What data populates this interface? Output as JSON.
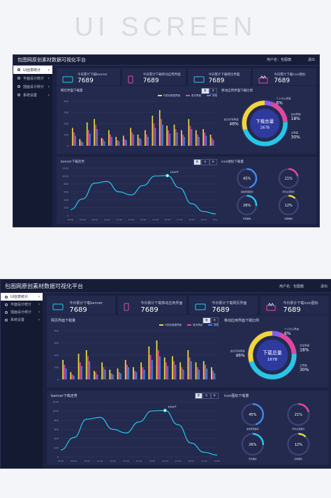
{
  "hero_title": "UI SCREEN",
  "app": {
    "title": "包图网原创素材数据可视化平台",
    "user": "用户名：包图酱",
    "logout": "退出"
  },
  "sidebar": {
    "items": [
      {
        "label": "UI创意统计"
      },
      {
        "label": "平面设计统计"
      },
      {
        "label": "插画设计统计"
      },
      {
        "label": "系统设置"
      }
    ]
  },
  "stats": [
    {
      "label": "今日累计下载banner",
      "value": "7689",
      "icon": "monitor-icon"
    },
    {
      "label": "今日累计下载移动应用界面",
      "value": "7689",
      "icon": "phone-icon"
    },
    {
      "label": "今日累计下载网页界面",
      "value": "7689",
      "icon": "monitor-icon"
    },
    {
      "label": "今日累计下载icon图标",
      "value": "7689",
      "icon": "gift-icon"
    }
  ],
  "colors": {
    "bg": "#1b2140",
    "card": "#232a4e",
    "yellow": "#f2d53c",
    "pink": "#e0489f",
    "blue": "#3f86e8",
    "cyan": "#28c6e6",
    "purple": "#8a5cf0"
  },
  "bar_panel": {
    "title": "网页界面下载量",
    "buttons": [
      "周",
      "年"
    ],
    "legend": [
      "可视化数据界面",
      "首页界面",
      "其他"
    ]
  },
  "donut_panel": {
    "title": "移动应用界面下载比例",
    "center_title": "下载总量",
    "center_value": "1678",
    "segments": [
      {
        "label": "个人中心界面",
        "value": "6%"
      },
      {
        "label": "活动界面",
        "value": "18%"
      },
      {
        "label": "启动引导界面",
        "value": "46%"
      },
      {
        "label": "主界面",
        "value": "30%"
      }
    ]
  },
  "line_panel": {
    "title": "banner下载走势",
    "buttons": [
      "周",
      "月",
      "年"
    ],
    "tooltip": "1010个"
  },
  "icon_panel": {
    "title": "icon图标下载量",
    "rings": [
      {
        "value": "45%",
        "label": "金融网银图标",
        "color": "#3f86e8"
      },
      {
        "value": "21%",
        "label": "手机主题图标",
        "color": "#e0489f"
      },
      {
        "value": "26%",
        "label": "手机图标",
        "color": "#28c6e6"
      },
      {
        "value": "12%",
        "label": "功能图标",
        "color": "#f2d53c"
      }
    ]
  },
  "chart_data": [
    {
      "type": "bar",
      "title": "网页界面下载量",
      "categories": [
        "1",
        "2",
        "3",
        "4",
        "5",
        "6",
        "7",
        "8",
        "9",
        "10",
        "11",
        "12",
        "13",
        "14",
        "15",
        "16",
        "17",
        "18",
        "19",
        "20"
      ],
      "ylim": [
        0,
        400
      ],
      "yticks": [
        0,
        100,
        200,
        300,
        400
      ],
      "series": [
        {
          "name": "可视化数据界面",
          "values": [
            160,
            60,
            210,
            240,
            70,
            140,
            80,
            90,
            160,
            100,
            140,
            270,
            320,
            180,
            190,
            140,
            240,
            140,
            150,
            100
          ]
        },
        {
          "name": "首页界面",
          "values": [
            120,
            40,
            140,
            190,
            60,
            100,
            50,
            60,
            120,
            70,
            100,
            200,
            240,
            140,
            150,
            100,
            180,
            100,
            120,
            70
          ]
        },
        {
          "name": "其他",
          "values": [
            90,
            30,
            110,
            150,
            40,
            80,
            40,
            50,
            100,
            60,
            80,
            160,
            190,
            110,
            120,
            80,
            150,
            80,
            90,
            50
          ]
        }
      ]
    },
    {
      "type": "line",
      "title": "banner下载走势",
      "x": [
        "08:00",
        "09:00",
        "10:00",
        "11:00",
        "12:00",
        "13:00",
        "14:00",
        "15:00",
        "16:00",
        "17:00",
        "18:00",
        "19:00",
        "20:00"
      ],
      "ylim": [
        0,
        1200
      ],
      "yticks": [
        0,
        200,
        400,
        600,
        800,
        1000,
        1200
      ],
      "series": [
        {
          "values": [
            150,
            420,
            820,
            860,
            600,
            520,
            760,
            1000,
            1010,
            700,
            300,
            100,
            40
          ]
        }
      ]
    }
  ]
}
